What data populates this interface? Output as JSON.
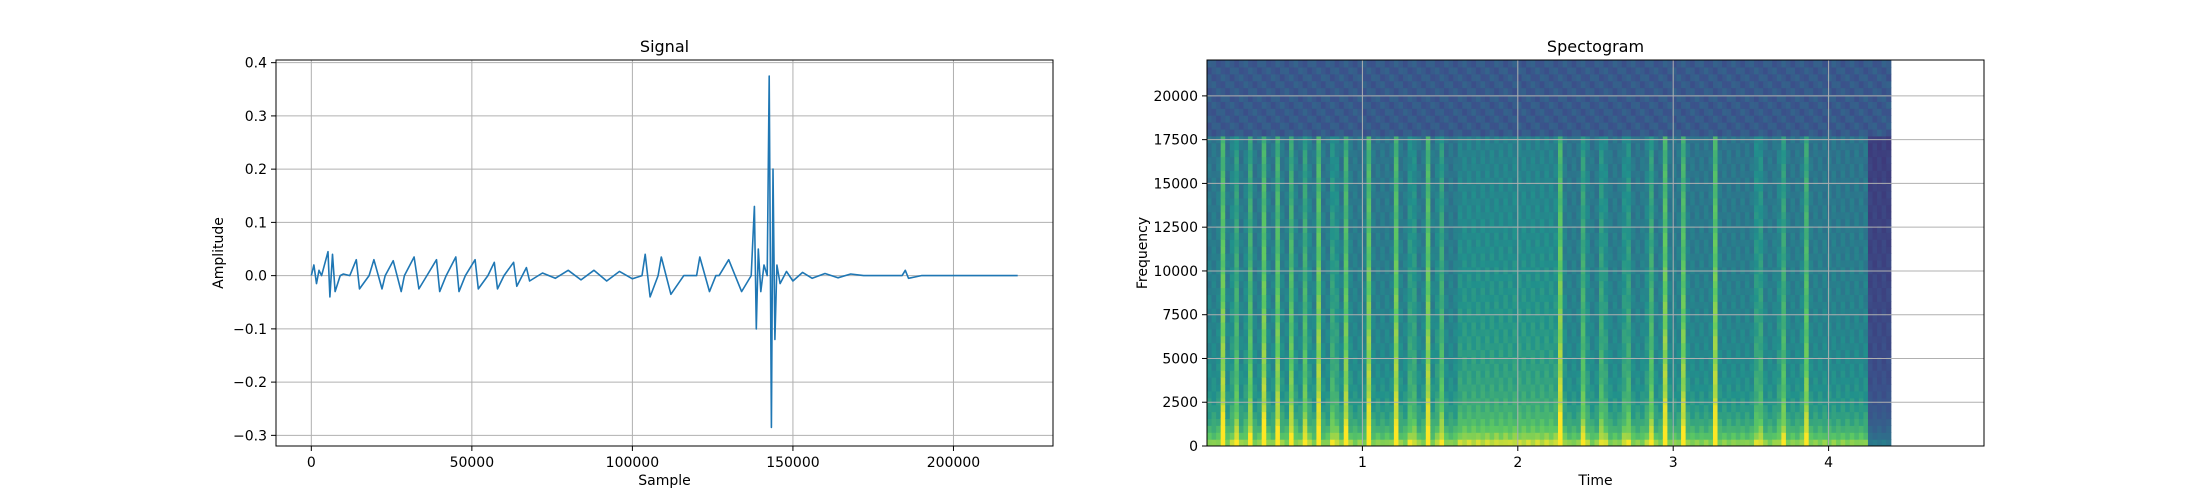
{
  "chart_data": [
    {
      "type": "line",
      "title": "Signal",
      "xlabel": "Sample",
      "ylabel": "Amplitude",
      "xlim": [
        -11000,
        231000
      ],
      "ylim": [
        -0.32,
        0.405
      ],
      "xticks": [
        0,
        50000,
        100000,
        150000,
        200000
      ],
      "yticks": [
        -0.3,
        -0.2,
        -0.1,
        0.0,
        0.1,
        0.2,
        0.3,
        0.4
      ],
      "xtick_labels": [
        "0",
        "50000",
        "100000",
        "150000",
        "200000"
      ],
      "ytick_labels": [
        "−0.3",
        "−0.2",
        "−0.1",
        "0.0",
        "0.1",
        "0.2",
        "0.3",
        "0.4"
      ],
      "grid": true,
      "line_color": "#1f77b4",
      "series": [
        {
          "x": [
            0,
            800,
            1600,
            2400,
            3200,
            5200,
            5800,
            6600,
            7400,
            9000,
            10000,
            12000,
            14000,
            15000,
            18000,
            19500,
            22000,
            23000,
            25500,
            28000,
            29000,
            32000,
            33500,
            36000,
            39000,
            40000,
            42000,
            45000,
            46000,
            48000,
            51000,
            52000,
            55000,
            57000,
            58000,
            60000,
            63000,
            64000,
            67000,
            68000,
            72000,
            76000,
            80000,
            84000,
            88000,
            92000,
            96000,
            100000,
            103000,
            104000,
            105500,
            108000,
            109000,
            112000,
            116000,
            120000,
            121000,
            124000,
            126000,
            127000,
            130000,
            134000,
            137000,
            138000,
            138600,
            139200,
            140000,
            141000,
            142000,
            142600,
            143300,
            143800,
            144400,
            145000,
            146000,
            148000,
            150000,
            153000,
            156000,
            160000,
            164000,
            168000,
            172000,
            184000,
            185000,
            186000,
            190000,
            195000,
            200000,
            210000,
            220000
          ],
          "y": [
            0.0,
            0.02,
            -0.015,
            0.01,
            0.0,
            0.045,
            -0.04,
            0.04,
            -0.03,
            0.0,
            0.003,
            0.0,
            0.03,
            -0.025,
            0.0,
            0.03,
            -0.025,
            0.0,
            0.028,
            -0.03,
            0.0,
            0.035,
            -0.025,
            0.0,
            0.03,
            -0.03,
            0.0,
            0.035,
            -0.03,
            0.0,
            0.03,
            -0.025,
            0.0,
            0.025,
            -0.025,
            0.0,
            0.025,
            -0.02,
            0.015,
            -0.01,
            0.005,
            -0.005,
            0.01,
            -0.008,
            0.01,
            -0.01,
            0.008,
            -0.006,
            0.0,
            0.04,
            -0.04,
            0.0,
            0.035,
            -0.035,
            0.0,
            0.0,
            0.035,
            -0.03,
            0.0,
            0.0,
            0.03,
            -0.03,
            0.0,
            0.13,
            -0.1,
            0.05,
            -0.03,
            0.02,
            0.0,
            0.375,
            -0.285,
            0.2,
            -0.12,
            0.02,
            -0.015,
            0.008,
            -0.01,
            0.006,
            -0.005,
            0.004,
            -0.004,
            0.003,
            0.0,
            0.0,
            0.01,
            -0.005,
            0.0,
            0.0,
            0.0,
            0.0,
            0.0
          ]
        }
      ]
    },
    {
      "type": "heatmap",
      "title": "Spectogram",
      "xlabel": "Time",
      "ylabel": "Frequency",
      "xlim": [
        0.0,
        5.0
      ],
      "ylim": [
        0,
        22050
      ],
      "data_x_extent": [
        0.0,
        4.4
      ],
      "xticks": [
        1,
        2,
        3,
        4
      ],
      "yticks": [
        0,
        2500,
        5000,
        7500,
        10000,
        12500,
        15000,
        17500,
        20000
      ],
      "xtick_labels": [
        "1",
        "2",
        "3",
        "4"
      ],
      "ytick_labels": [
        "0",
        "2500",
        "5000",
        "7500",
        "10000",
        "12500",
        "15000",
        "17500",
        "20000"
      ],
      "grid": true,
      "colormap": [
        "#440154",
        "#3b528b",
        "#21918c",
        "#5ec962",
        "#fde725"
      ],
      "transient_times": [
        0.1,
        0.18,
        0.27,
        0.37,
        0.46,
        0.55,
        0.64,
        0.72,
        0.82,
        0.9,
        1.04,
        1.22,
        1.32,
        1.42,
        1.5,
        2.28,
        2.43,
        2.55,
        2.7,
        2.85,
        2.95,
        3.07,
        3.27,
        3.55,
        3.7,
        3.85
      ],
      "dense_band_time": [
        1.6,
        2.3
      ],
      "upper_cutoff_frequency": 17700
    }
  ]
}
